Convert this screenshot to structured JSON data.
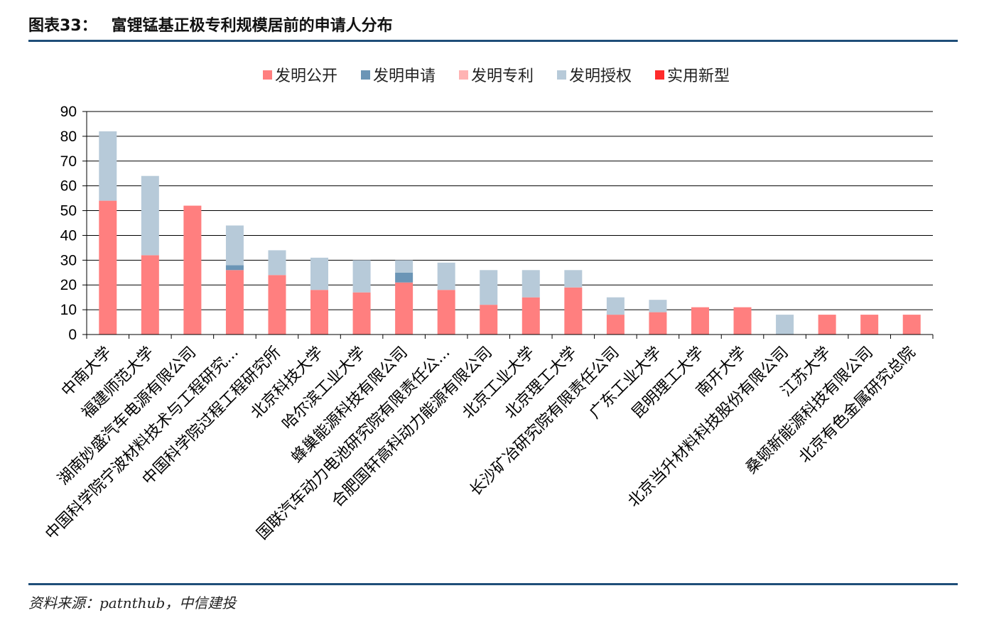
{
  "header": {
    "figure_number": "图表33：",
    "title": "富锂锰基正极专利规模居前的申请人分布"
  },
  "footer": {
    "source": "资料来源：patnthub，中信建投"
  },
  "chart_data": {
    "type": "bar",
    "stacked": true,
    "categories": [
      "中南大学",
      "福建师范大学",
      "湖南妙盛汽车电源有限公司",
      "中国科学院宁波材料技术与工程研究...",
      "中国科学院过程工程研究所",
      "北京科技大学",
      "哈尔滨工业大学",
      "蜂巢能源科技有限公司",
      "国联汽车动力电池研究院有限责任公...",
      "合肥国轩高科动力能源有限公司",
      "北京工业大学",
      "北京理工大学",
      "长沙矿冶研究院有限责任公司",
      "广东工业大学",
      "昆明理工大学",
      "南开大学",
      "北京当升材料科技股份有限公司",
      "江苏大学",
      "桑顿新能源科技有限公司",
      "北京有色金属研究总院"
    ],
    "series": [
      {
        "name": "发明公开",
        "color": "#ff7f7f",
        "values": [
          54,
          32,
          52,
          26,
          24,
          18,
          17,
          21,
          18,
          12,
          15,
          19,
          8,
          9,
          11,
          11,
          0,
          8,
          8,
          8
        ]
      },
      {
        "name": "发明申请",
        "color": "#6b95b6",
        "values": [
          0,
          0,
          0,
          2,
          0,
          0,
          0,
          4,
          0,
          0,
          0,
          0,
          0,
          0,
          0,
          0,
          0,
          0,
          0,
          0
        ]
      },
      {
        "name": "发明专利",
        "color": "#ffb3b3",
        "values": [
          0,
          0,
          0,
          0,
          0,
          0,
          0,
          0,
          0,
          0,
          0,
          0,
          0,
          0,
          0,
          0,
          0,
          0,
          0,
          0
        ]
      },
      {
        "name": "发明授权",
        "color": "#b7cad9",
        "values": [
          28,
          32,
          0,
          16,
          10,
          13,
          13,
          5,
          11,
          14,
          11,
          7,
          7,
          5,
          0,
          0,
          8,
          0,
          0,
          0
        ]
      },
      {
        "name": "实用新型",
        "color": "#ff2b2b",
        "values": [
          0,
          0,
          0,
          0,
          0,
          0,
          0,
          0,
          0,
          0,
          0,
          0,
          0,
          0,
          0,
          0,
          0,
          0,
          0,
          0
        ]
      }
    ],
    "y_ticks": [
      0,
      10,
      20,
      30,
      40,
      50,
      60,
      70,
      80,
      90
    ],
    "ylim": [
      0,
      90
    ],
    "grid": true,
    "legend_position": "top-center"
  }
}
